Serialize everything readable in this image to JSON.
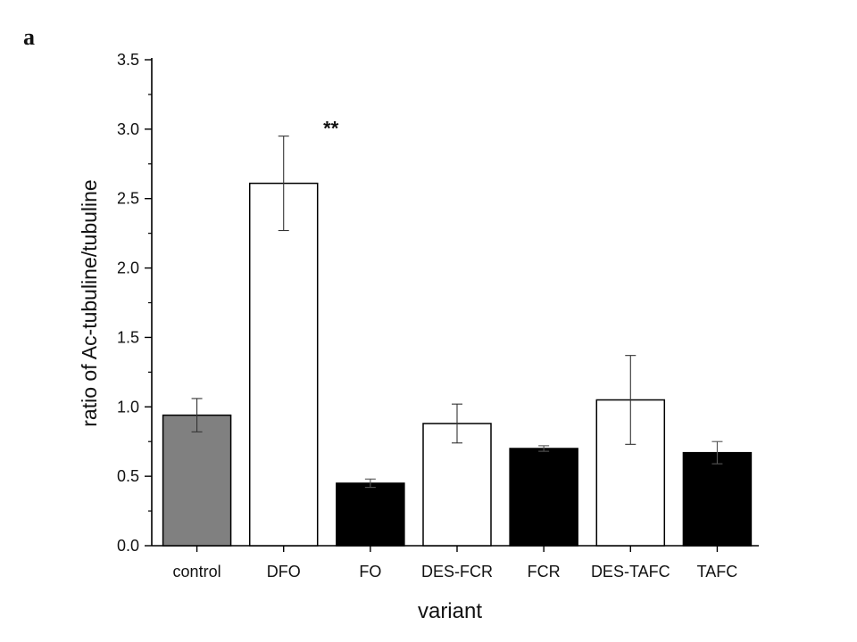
{
  "panel_label": "a",
  "chart_data": {
    "type": "bar",
    "title": "",
    "xlabel": "variant",
    "ylabel": "ratio of Ac-tubuline/tubuline",
    "ylim": [
      0,
      3.5
    ],
    "yticks": [
      "0.0",
      "0.5",
      "1.0",
      "1.5",
      "2.0",
      "2.5",
      "3.0",
      "3.5"
    ],
    "grid": false,
    "legend": "none",
    "categories": [
      "control",
      "DFO",
      "FO",
      "DES-FCR",
      "FCR",
      "DES-TAFC",
      "TAFC"
    ],
    "values": [
      0.94,
      2.61,
      0.45,
      0.88,
      0.7,
      1.05,
      0.67
    ],
    "errors": [
      0.12,
      0.34,
      0.03,
      0.14,
      0.02,
      0.32,
      0.08
    ],
    "bar_colors": [
      "#808080",
      "#ffffff",
      "#000000",
      "#ffffff",
      "#000000",
      "#ffffff",
      "#000000"
    ],
    "annotations": [
      {
        "category": "DFO",
        "text": "**"
      }
    ]
  }
}
